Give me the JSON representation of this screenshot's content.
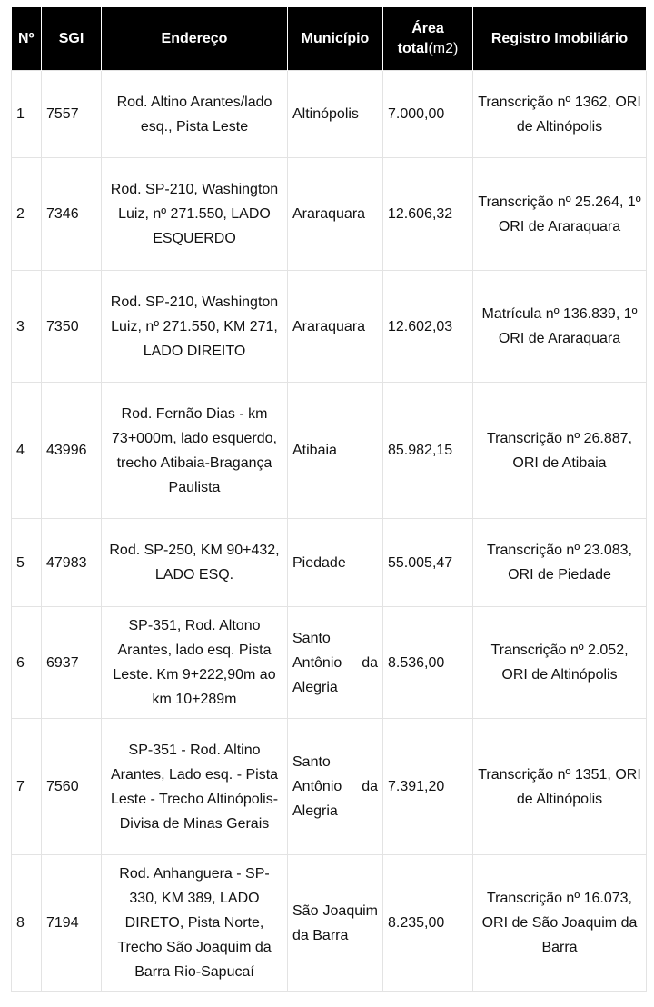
{
  "table": {
    "headers": {
      "num": "Nº",
      "sgi": "SGI",
      "endereco": "Endereço",
      "municipio": "Município",
      "area_a": "Área",
      "area_b": "total",
      "area_unit": "(m2)",
      "registro": "Registro Imobiliário"
    },
    "rows": [
      {
        "num": "1",
        "sgi": "7557",
        "endereco": "Rod. Altino Arantes/lado esq., Pista Leste",
        "municipio": "Altinópolis",
        "area": "7.000,00",
        "registro": "Transcrição nº 1362, ORI de Altinópolis"
      },
      {
        "num": "2",
        "sgi": "7346",
        "endereco": "Rod. SP-210, Washington Luiz, nº 271.550, LADO ESQUERDO",
        "municipio": "Araraquara",
        "area": "12.606,32",
        "registro": "Transcrição nº 25.264, 1º ORI de Araraquara"
      },
      {
        "num": "3",
        "sgi": "7350",
        "endereco": "Rod. SP-210, Washington Luiz, nº 271.550, KM 271, LADO DIREITO",
        "municipio": "Araraquara",
        "area": "12.602,03",
        "registro": "Matrícula nº 136.839, 1º ORI de Araraquara"
      },
      {
        "num": "4",
        "sgi": "43996",
        "endereco": "Rod. Fernão Dias - km 73+000m, lado esquerdo, trecho Atibaia-Bragança Paulista",
        "municipio": "Atibaia",
        "area": "85.982,15",
        "registro": "Transcrição nº 26.887, ORI de Atibaia"
      },
      {
        "num": "5",
        "sgi": "47983",
        "endereco": "Rod. SP-250, KM 90+432, LADO ESQ.",
        "municipio": "Piedade",
        "area": "55.005,47",
        "registro": "Transcrição nº 23.083, ORI de Piedade"
      },
      {
        "num": "6",
        "sgi": "6937",
        "endereco": "SP-351, Rod. Altono Arantes, lado esq. Pista Leste. Km 9+222,90m ao km 10+289m",
        "municipio": "Santo Antônio da Alegria",
        "area": "8.536,00",
        "registro": "Transcrição nº 2.052, ORI de Altinópolis"
      },
      {
        "num": "7",
        "sgi": "7560",
        "endereco": "SP-351 - Rod. Altino Arantes, Lado esq. - Pista Leste - Trecho Altinópolis- Divisa de Minas Gerais",
        "municipio": "Santo Antônio da Alegria",
        "area": "7.391,20",
        "registro": "Transcrição nº 1351, ORI de Altinópolis"
      },
      {
        "num": "8",
        "sgi": "7194",
        "endereco": "Rod. Anhanguera - SP-330, KM 389, LADO DIRETO, Pista Norte, Trecho São Joaquim da Barra Rio-Sapucaí",
        "municipio": "São Joaquim da Barra",
        "area": "8.235,00",
        "registro": "Transcrição nº 16.073, ORI de São Joaquim da Barra"
      }
    ]
  }
}
